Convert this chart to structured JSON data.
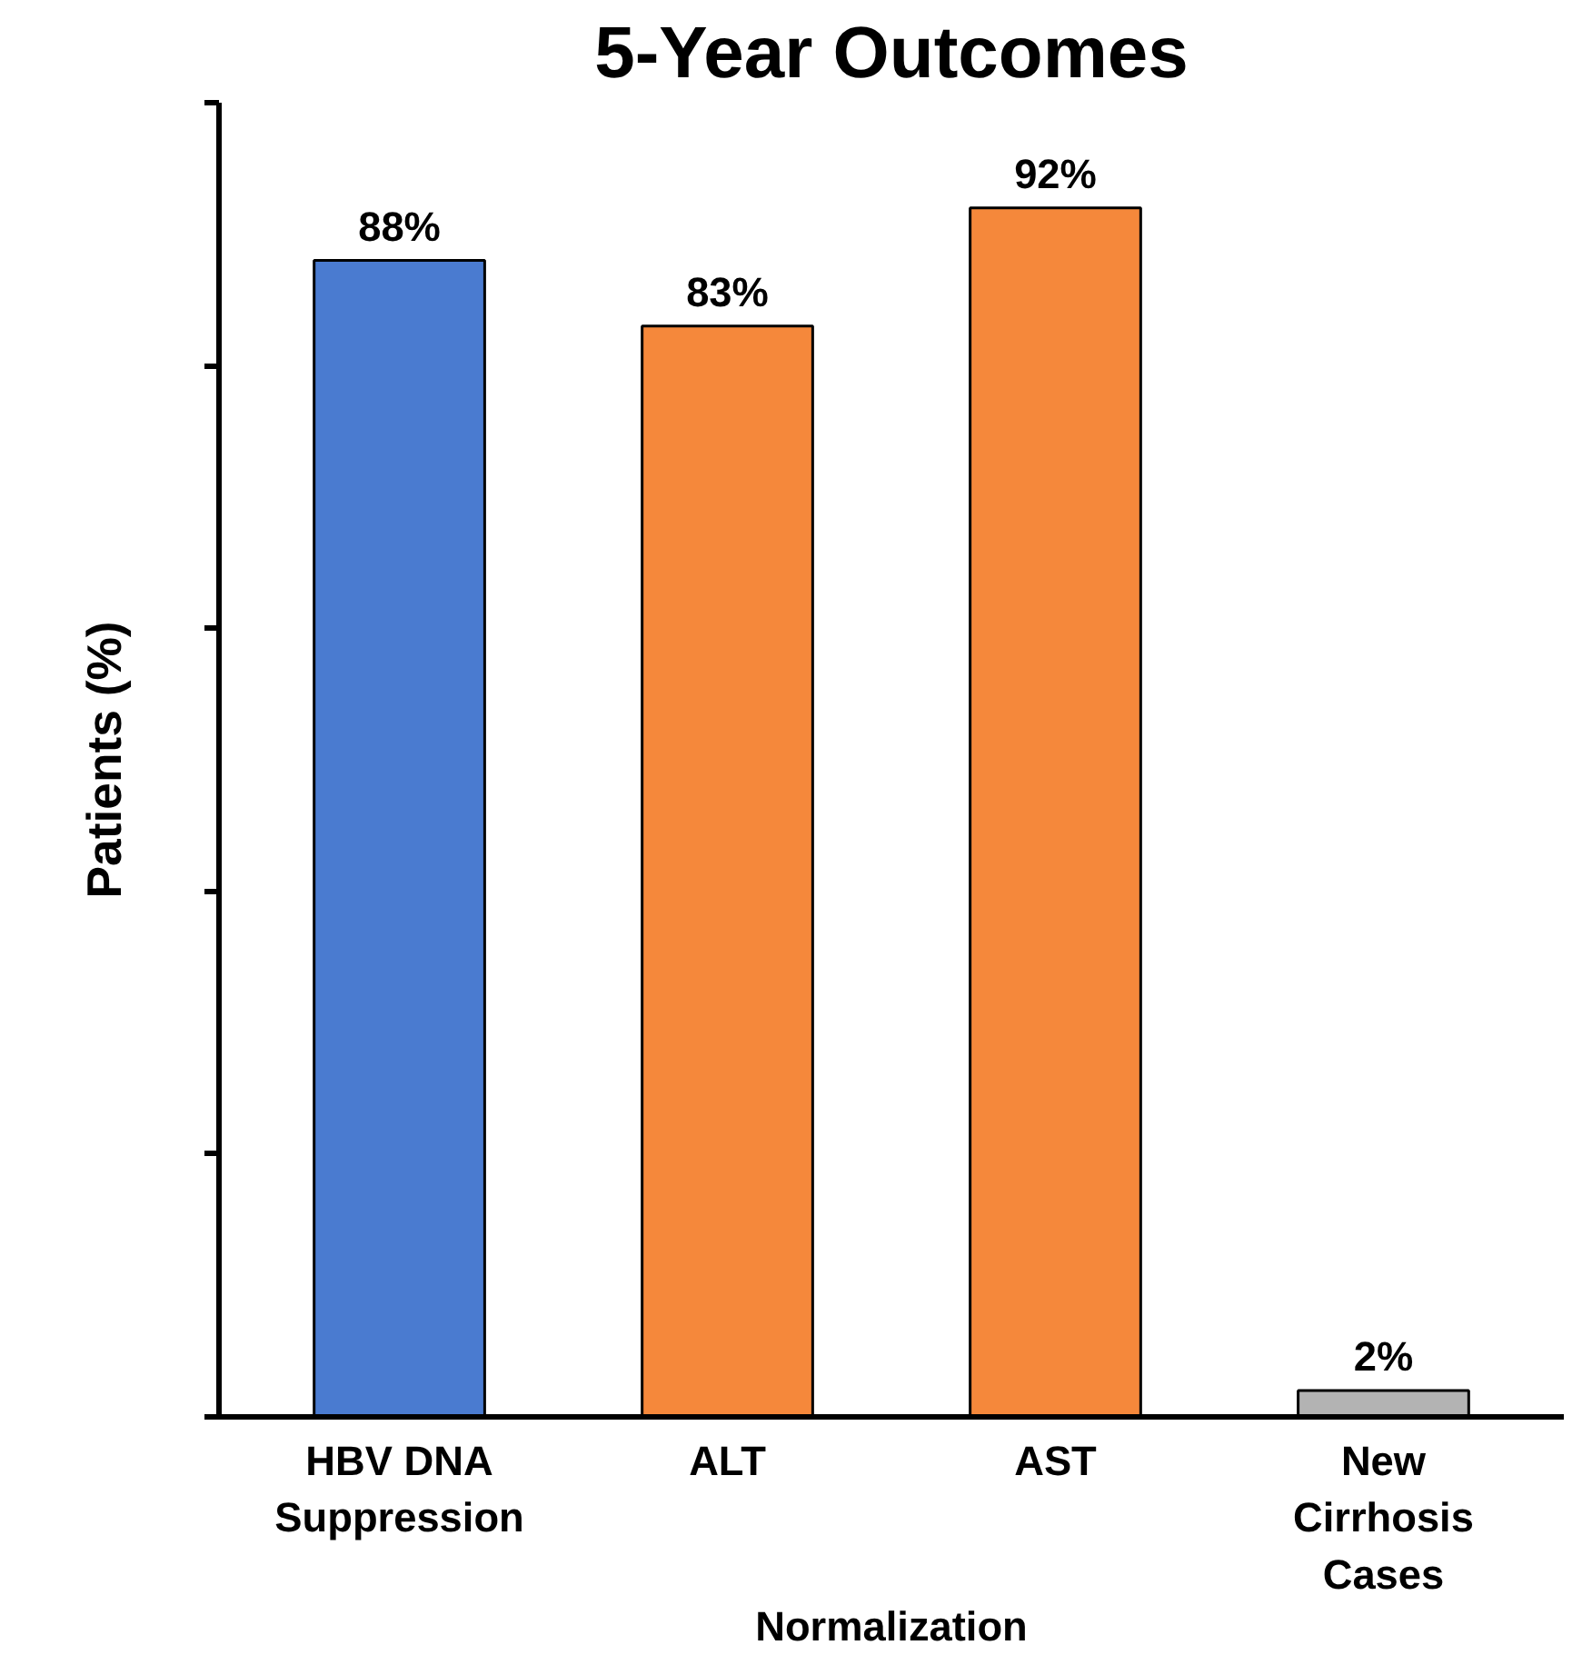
{
  "chart_data": {
    "type": "bar",
    "title": "5-Year Outcomes",
    "ylabel": "Patients (%)",
    "categories": [
      "HBV DNA\nSuppression",
      "ALT",
      "AST",
      "New\nCirrhosis\nCases"
    ],
    "values": [
      88,
      83,
      92,
      2
    ],
    "colors": [
      "#4a7bd0",
      "#f5883b",
      "#f5883b",
      "#b3b3b3"
    ],
    "value_labels": [
      "88%",
      "83%",
      "92%",
      "2%"
    ],
    "annotations": [
      "Normalization"
    ],
    "ylim": [
      0,
      100
    ],
    "yticks": [
      {
        "value": 0,
        "label": null
      },
      {
        "value": 20,
        "label": null
      },
      {
        "value": 40,
        "label": null
      },
      {
        "value": 60,
        "label": null
      },
      {
        "value": 80,
        "label": null
      },
      {
        "value": 100,
        "label": null
      }
    ],
    "tick_labels": "x",
    "grid": false
  }
}
